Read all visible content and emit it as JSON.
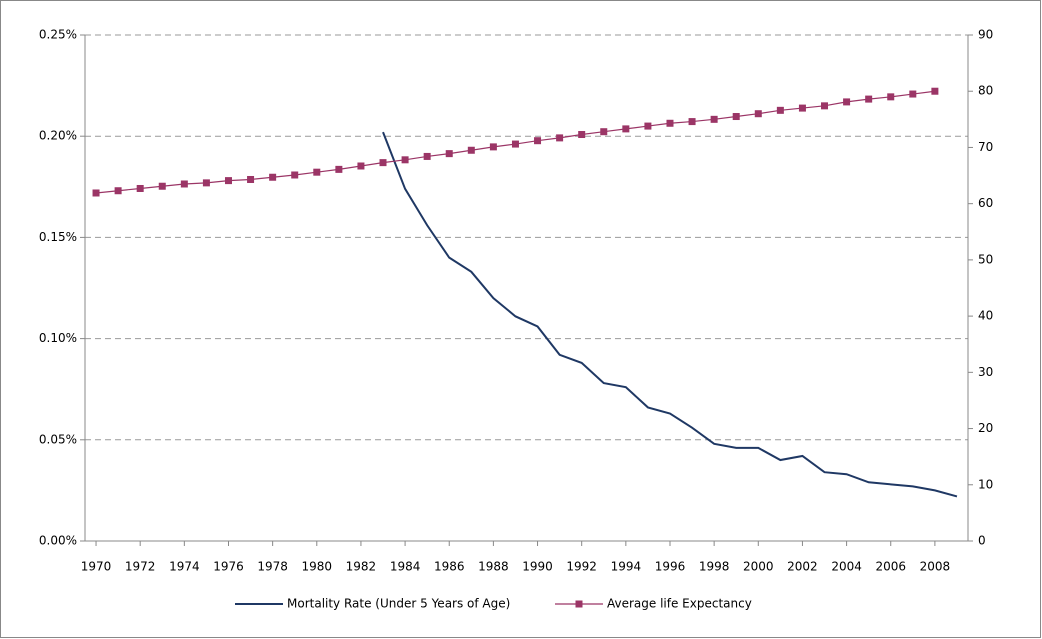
{
  "chart_data": {
    "type": "line",
    "xlim": [
      1969.5,
      2009.5
    ],
    "xticks": [
      1970,
      1972,
      1974,
      1976,
      1978,
      1980,
      1982,
      1984,
      1986,
      1988,
      1990,
      1992,
      1994,
      1996,
      1998,
      2000,
      2002,
      2004,
      2006,
      2008
    ],
    "ylim": [
      0,
      0.25
    ],
    "yticks": [
      {
        "value": 0,
        "label": "0.00%"
      },
      {
        "value": 0.05,
        "label": "0.05%"
      },
      {
        "value": 0.1,
        "label": "0.10%"
      },
      {
        "value": 0.15,
        "label": "0.15%"
      },
      {
        "value": 0.2,
        "label": "0.20%"
      },
      {
        "value": 0.25,
        "label": "0.25%"
      }
    ],
    "y2lim": [
      0,
      90
    ],
    "y2ticks": [
      0,
      10,
      20,
      30,
      40,
      50,
      60,
      70,
      80,
      90
    ],
    "grid": true,
    "legend": "bottom",
    "series": [
      {
        "name": "Mortality Rate (Under 5 Years of Age)",
        "color": "#1f3864",
        "marker": false,
        "x": [
          1983,
          1984,
          1985,
          1986,
          1987,
          1988,
          1989,
          1990,
          1991,
          1992,
          1993,
          1994,
          1995,
          1996,
          1997,
          1998,
          1999,
          2000,
          2001,
          2002,
          2003,
          2004,
          2005,
          2006,
          2007,
          2008,
          2009
        ],
        "values": [
          0.202,
          0.174,
          0.156,
          0.14,
          0.133,
          0.12,
          0.111,
          0.106,
          0.092,
          0.088,
          0.078,
          0.076,
          0.066,
          0.063,
          0.056,
          0.048,
          0.046,
          0.046,
          0.04,
          0.042,
          0.034,
          0.033,
          0.029,
          0.028,
          0.027,
          0.025,
          0.022
        ]
      },
      {
        "name": "Average life Expectancy",
        "color": "#9b3566",
        "marker": true,
        "axis": "y2",
        "x": [
          1970,
          1971,
          1972,
          1973,
          1974,
          1975,
          1976,
          1977,
          1978,
          1979,
          1980,
          1981,
          1982,
          1983,
          1984,
          1985,
          1986,
          1987,
          1988,
          1989,
          1990,
          1991,
          1992,
          1993,
          1994,
          1995,
          1996,
          1997,
          1998,
          1999,
          2000,
          2001,
          2002,
          2003,
          2004,
          2005,
          2006,
          2007,
          2008
        ],
        "values": [
          61.9,
          62.3,
          62.7,
          63.1,
          63.5,
          63.7,
          64.1,
          64.3,
          64.7,
          65.1,
          65.6,
          66.1,
          66.7,
          67.3,
          67.8,
          68.4,
          68.9,
          69.5,
          70.1,
          70.6,
          71.2,
          71.7,
          72.3,
          72.8,
          73.3,
          73.8,
          74.3,
          74.6,
          75.0,
          75.5,
          76.0,
          76.6,
          77.0,
          77.4,
          78.1,
          78.6,
          79.0,
          79.5,
          80.0
        ]
      }
    ]
  }
}
